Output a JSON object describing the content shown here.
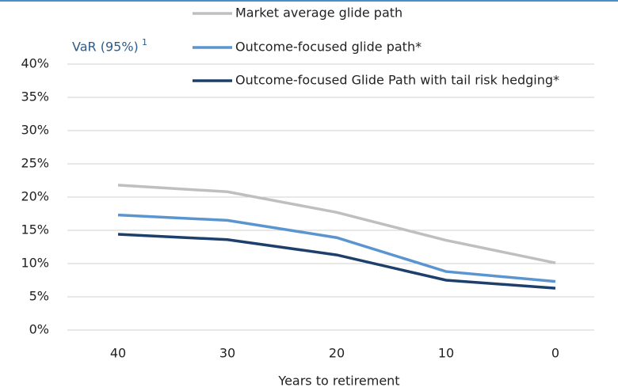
{
  "chart_data": {
    "type": "line",
    "y_label": "VaR (95%)",
    "y_label_superscript": "1",
    "x_label": "Years to retirement",
    "categories": [
      "40",
      "30",
      "20",
      "10",
      "0"
    ],
    "series": [
      {
        "name": "Market average glide path",
        "color": "#bfbfbf",
        "values": [
          21.8,
          20.8,
          17.7,
          13.5,
          10.1
        ]
      },
      {
        "name": "Outcome-focused glide path*",
        "color": "#5b95cf",
        "values": [
          17.3,
          16.5,
          13.9,
          8.8,
          7.3
        ]
      },
      {
        "name": "Outcome-focused Glide Path with tail risk hedging*",
        "color": "#1d3f6b",
        "values": [
          14.4,
          13.6,
          11.3,
          7.5,
          6.3
        ]
      }
    ],
    "ylim": [
      0,
      40
    ],
    "yticks": [
      {
        "value": 0,
        "label": "0%"
      },
      {
        "value": 5,
        "label": "5%"
      },
      {
        "value": 10,
        "label": "10%"
      },
      {
        "value": 15,
        "label": "15%"
      },
      {
        "value": 20,
        "label": "20%"
      },
      {
        "value": 25,
        "label": "25%"
      },
      {
        "value": 30,
        "label": "30%"
      },
      {
        "value": 35,
        "label": "35%"
      },
      {
        "value": 40,
        "label": "40%"
      }
    ],
    "grid": true,
    "legend": "top"
  }
}
